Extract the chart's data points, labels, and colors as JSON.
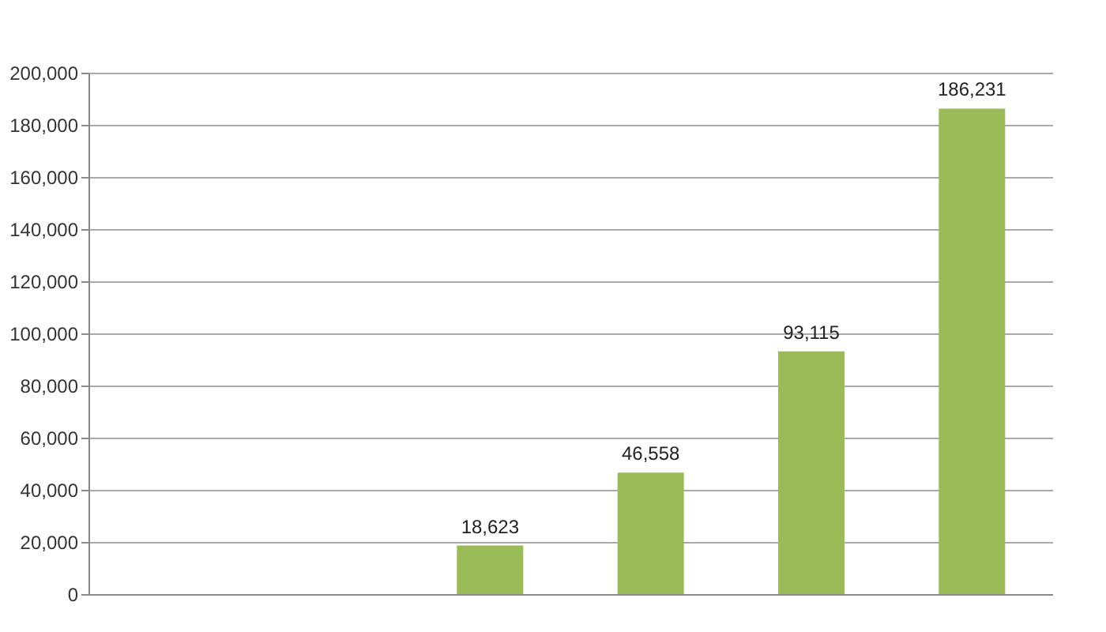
{
  "chart_data": {
    "type": "bar",
    "categories": [
      null,
      null,
      null,
      null,
      null,
      null
    ],
    "values": [
      null,
      null,
      18623,
      46558,
      93115,
      186231
    ],
    "value_labels": [
      null,
      null,
      "18,623",
      "46,558",
      "93,115",
      "186,231"
    ],
    "color": "#9bbb59",
    "ylim": [
      0,
      200000
    ],
    "yticks": [
      {
        "value": 0,
        "label": "0"
      },
      {
        "value": 20000,
        "label": "20,000"
      },
      {
        "value": 40000,
        "label": "40,000"
      },
      {
        "value": 60000,
        "label": "60,000"
      },
      {
        "value": 80000,
        "label": "80,000"
      },
      {
        "value": 100000,
        "label": "100,000"
      },
      {
        "value": 120000,
        "label": "120,000"
      },
      {
        "value": 140000,
        "label": "140,000"
      },
      {
        "value": 160000,
        "label": "160,000"
      },
      {
        "value": 180000,
        "label": "180,000"
      },
      {
        "value": 200000,
        "label": "200,000"
      }
    ],
    "grid": "y"
  }
}
